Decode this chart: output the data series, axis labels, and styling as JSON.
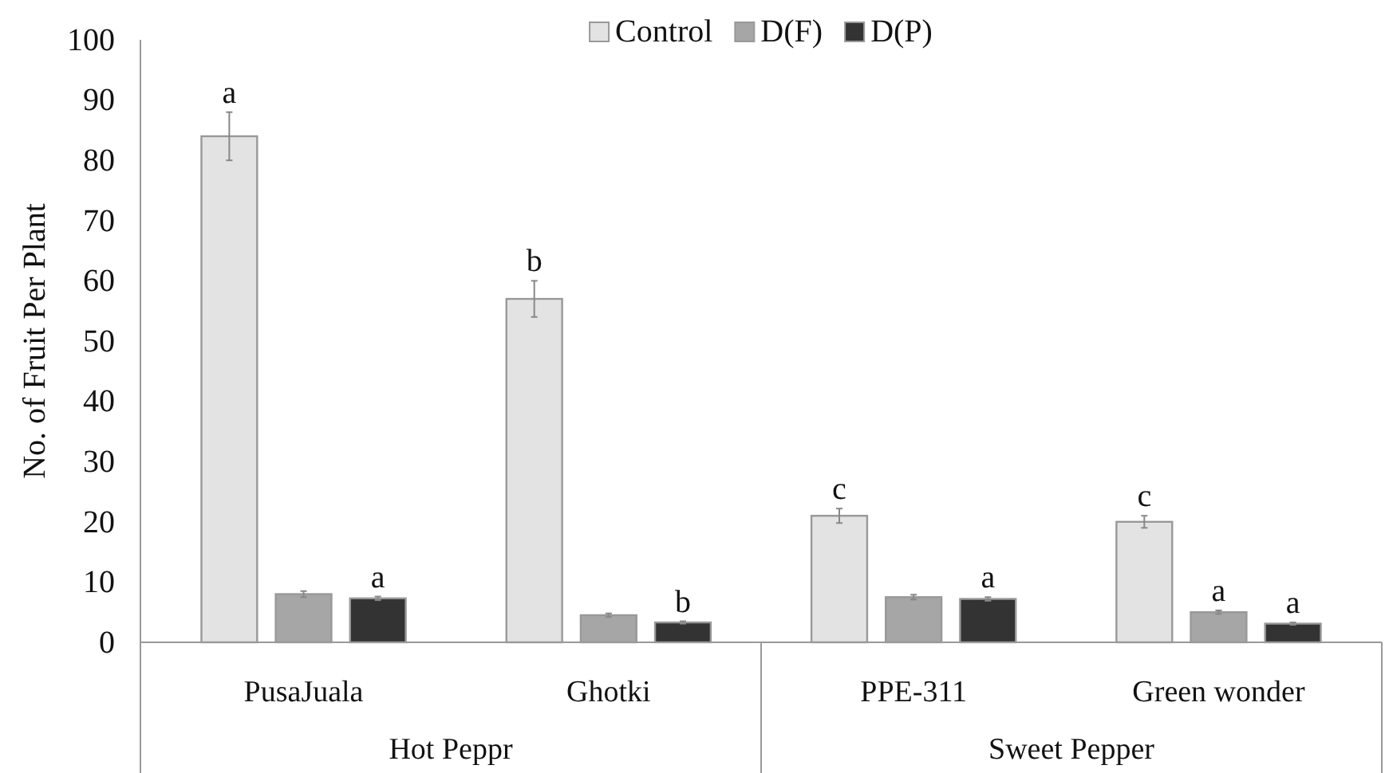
{
  "chart_data": {
    "type": "bar",
    "ylabel": "No. of Fruit Per Plant",
    "categories": [
      "PusaJuala",
      "Ghotki",
      "PPE-311",
      "Green wonder"
    ],
    "series": [
      {
        "name": "Control",
        "color": "#e3e3e3",
        "values": [
          84,
          57,
          21,
          20
        ],
        "errors": [
          4,
          3,
          1.2,
          1
        ],
        "value_labels": [
          "a",
          "b",
          "c",
          "c"
        ]
      },
      {
        "name": "D(F)",
        "color": "#a6a6a6",
        "values": [
          8,
          4.5,
          7.5,
          5
        ],
        "errors": [
          0.5,
          0.3,
          0.4,
          0.3
        ],
        "value_labels": [
          null,
          null,
          null,
          "a"
        ]
      },
      {
        "name": "D(P)",
        "color": "#333333",
        "values": [
          7.3,
          3.3,
          7.2,
          3.1
        ],
        "errors": [
          0.3,
          0.2,
          0.3,
          0.2
        ],
        "value_labels": [
          "a",
          "b",
          "a",
          "a"
        ]
      }
    ],
    "annotations": [
      "Hot Peppr",
      "Sweet Pepper"
    ],
    "ylim": [
      0,
      100
    ],
    "yticks": [
      0,
      10,
      20,
      30,
      40,
      50,
      60,
      70,
      80,
      90,
      100
    ],
    "legend": "top",
    "grid": false
  }
}
